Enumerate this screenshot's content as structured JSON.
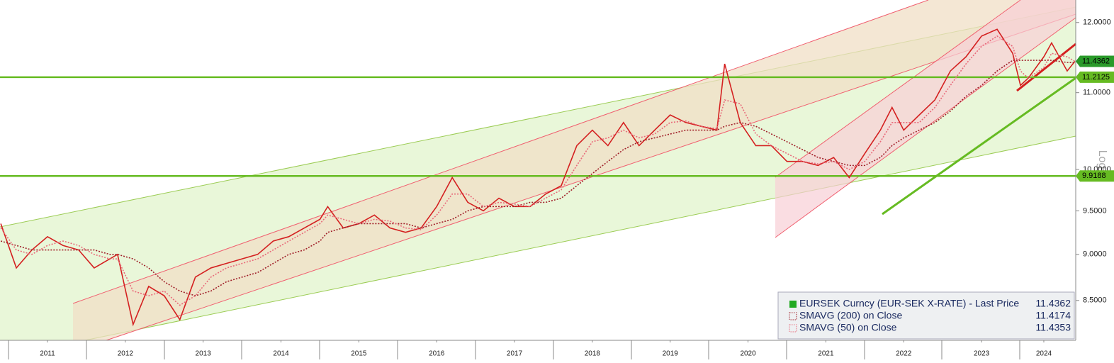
{
  "chart_data": {
    "type": "line",
    "log_scale": true,
    "y_axis_label": "Log",
    "x": [
      2010.9,
      2011.1,
      2011.3,
      2011.5,
      2011.7,
      2011.9,
      2012.1,
      2012.3,
      2012.4,
      2012.6,
      2012.8,
      2013.0,
      2013.2,
      2013.4,
      2013.6,
      2013.8,
      2014.0,
      2014.2,
      2014.4,
      2014.6,
      2014.8,
      2015.0,
      2015.1,
      2015.3,
      2015.5,
      2015.7,
      2015.9,
      2016.1,
      2016.3,
      2016.5,
      2016.7,
      2016.9,
      2017.1,
      2017.3,
      2017.5,
      2017.7,
      2017.9,
      2018.1,
      2018.3,
      2018.5,
      2018.7,
      2018.9,
      2019.1,
      2019.3,
      2019.5,
      2019.7,
      2019.9,
      2020.1,
      2020.2,
      2020.4,
      2020.6,
      2020.8,
      2021.0,
      2021.2,
      2021.4,
      2021.6,
      2021.8,
      2022.0,
      2022.2,
      2022.35,
      2022.5,
      2022.7,
      2022.9,
      2023.1,
      2023.3,
      2023.5,
      2023.7,
      2023.9,
      2024.0,
      2024.1,
      2024.3,
      2024.4,
      2024.6,
      2024.7
    ],
    "series": [
      {
        "name": "EURSEK Curncy (EUR-SEK X-RATE) - Last Price",
        "color": "#d42020",
        "last": 11.4362,
        "values": [
          9.35,
          8.85,
          9.05,
          9.2,
          9.1,
          9.05,
          8.85,
          8.95,
          9.0,
          8.25,
          8.65,
          8.55,
          8.3,
          8.75,
          8.85,
          8.9,
          8.95,
          9.0,
          9.15,
          9.2,
          9.3,
          9.4,
          9.55,
          9.3,
          9.35,
          9.45,
          9.3,
          9.25,
          9.3,
          9.55,
          9.9,
          9.6,
          9.5,
          9.65,
          9.55,
          9.55,
          9.7,
          9.8,
          10.3,
          10.5,
          10.3,
          10.6,
          10.3,
          10.5,
          10.7,
          10.6,
          10.55,
          10.5,
          11.4,
          10.6,
          10.3,
          10.3,
          10.1,
          10.1,
          10.05,
          10.15,
          9.9,
          10.2,
          10.5,
          10.8,
          10.5,
          10.7,
          10.9,
          11.3,
          11.5,
          11.8,
          11.9,
          11.55,
          11.1,
          11.2,
          11.5,
          11.7,
          11.3,
          11.4362
        ]
      },
      {
        "name": "SMAVG (200)  on Close",
        "color": "#a0202a",
        "last": 11.4174,
        "values": [
          9.15,
          9.1,
          9.05,
          9.05,
          9.05,
          9.05,
          9.05,
          9.0,
          9.0,
          8.95,
          8.85,
          8.7,
          8.6,
          8.55,
          8.6,
          8.7,
          8.75,
          8.8,
          8.9,
          9.0,
          9.05,
          9.15,
          9.25,
          9.3,
          9.35,
          9.35,
          9.35,
          9.35,
          9.3,
          9.35,
          9.4,
          9.5,
          9.55,
          9.55,
          9.55,
          9.6,
          9.6,
          9.65,
          9.8,
          9.95,
          10.1,
          10.25,
          10.35,
          10.4,
          10.45,
          10.5,
          10.5,
          10.5,
          10.55,
          10.6,
          10.55,
          10.45,
          10.35,
          10.25,
          10.15,
          10.1,
          10.05,
          10.05,
          10.15,
          10.3,
          10.4,
          10.5,
          10.6,
          10.75,
          10.95,
          11.1,
          11.3,
          11.45,
          11.45,
          11.45,
          11.45,
          11.45,
          11.42,
          11.4174
        ]
      },
      {
        "name": "SMAVG (50)  on Close",
        "color": "#e86a7a",
        "last": 11.4353,
        "values": [
          9.3,
          9.05,
          9.0,
          9.1,
          9.15,
          9.1,
          9.0,
          8.95,
          8.95,
          8.6,
          8.55,
          8.6,
          8.45,
          8.55,
          8.75,
          8.85,
          8.9,
          8.95,
          9.05,
          9.15,
          9.25,
          9.35,
          9.45,
          9.4,
          9.35,
          9.4,
          9.38,
          9.3,
          9.28,
          9.45,
          9.7,
          9.7,
          9.55,
          9.6,
          9.58,
          9.55,
          9.65,
          9.75,
          10.05,
          10.35,
          10.4,
          10.5,
          10.4,
          10.45,
          10.6,
          10.62,
          10.55,
          10.52,
          10.9,
          10.85,
          10.45,
          10.3,
          10.2,
          10.1,
          10.07,
          10.1,
          10.0,
          10.1,
          10.35,
          10.6,
          10.6,
          10.6,
          10.8,
          11.1,
          11.4,
          11.65,
          11.8,
          11.65,
          11.3,
          11.2,
          11.35,
          11.55,
          11.5,
          11.4353
        ]
      }
    ],
    "xlim": [
      2010.89,
      2024.71
    ],
    "xticks": [
      {
        "value": 2011.5,
        "label": "2011"
      },
      {
        "value": 2012.5,
        "label": "2012"
      },
      {
        "value": 2013.5,
        "label": "2013"
      },
      {
        "value": 2014.5,
        "label": "2014"
      },
      {
        "value": 2015.5,
        "label": "2015"
      },
      {
        "value": 2016.5,
        "label": "2016"
      },
      {
        "value": 2017.5,
        "label": "2017"
      },
      {
        "value": 2018.5,
        "label": "2018"
      },
      {
        "value": 2019.5,
        "label": "2019"
      },
      {
        "value": 2020.5,
        "label": "2020"
      },
      {
        "value": 2021.5,
        "label": "2021"
      },
      {
        "value": 2022.5,
        "label": "2022"
      },
      {
        "value": 2023.5,
        "label": "2023"
      },
      {
        "value": 2024.3,
        "label": "2024"
      }
    ],
    "ylim": [
      8.09,
      12.34
    ],
    "yticks": [
      {
        "value": 8.5,
        "label": "8.5000"
      },
      {
        "value": 9,
        "label": "9.0000"
      },
      {
        "value": 9.5,
        "label": "9.5000"
      },
      {
        "value": 10,
        "label": "10.0000"
      },
      {
        "value": 11,
        "label": "11.0000"
      },
      {
        "value": 12,
        "label": "12.0000"
      }
    ],
    "hlines": [
      11.2125,
      9.9188
    ],
    "hline_color": "#66bb22"
  }
}
